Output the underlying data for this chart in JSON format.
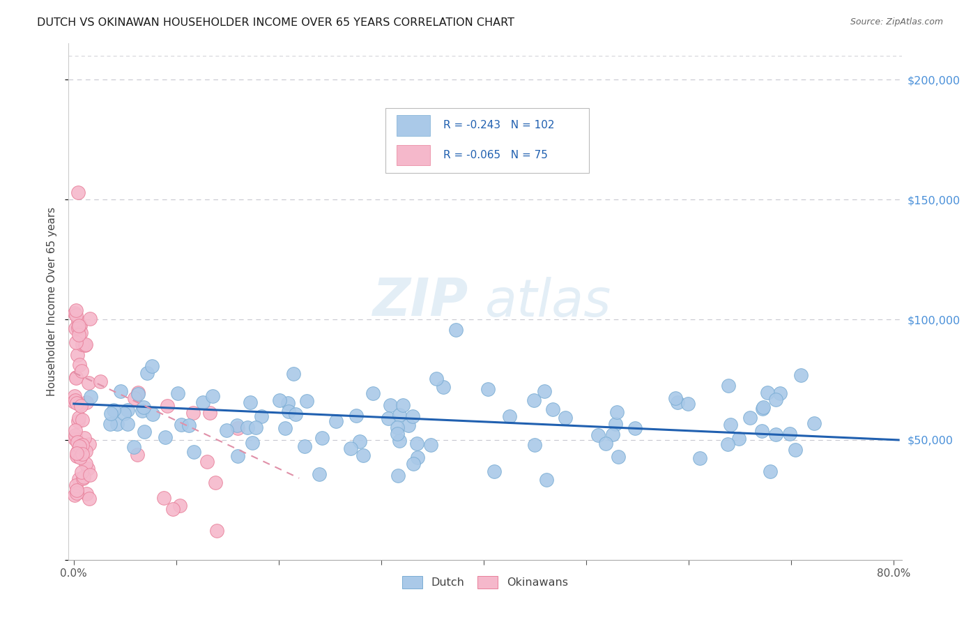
{
  "title": "DUTCH VS OKINAWAN HOUSEHOLDER INCOME OVER 65 YEARS CORRELATION CHART",
  "source": "Source: ZipAtlas.com",
  "ylabel": "Householder Income Over 65 years",
  "xlim": [
    -0.005,
    0.808
  ],
  "ylim": [
    0,
    215000
  ],
  "yticks": [
    0,
    50000,
    100000,
    150000,
    200000
  ],
  "xtick_positions": [
    0.0,
    0.1,
    0.2,
    0.3,
    0.4,
    0.5,
    0.6,
    0.7,
    0.8
  ],
  "dutch_color": "#aac9e8",
  "dutch_edge": "#7aadd4",
  "okinawan_color": "#f5b8cb",
  "okinawan_edge": "#e8809a",
  "trend_dutch_color": "#2060b0",
  "trend_okinawan_color": "#e090a8",
  "background_color": "#ffffff",
  "grid_color": "#c8c8d0",
  "legend_R_dutch": "-0.243",
  "legend_N_dutch": "102",
  "legend_R_okinawan": "-0.065",
  "legend_N_okinawan": "75",
  "watermark": "ZIPatlas",
  "watermark_zip": "ZIP",
  "watermark_atlas": "atlas"
}
